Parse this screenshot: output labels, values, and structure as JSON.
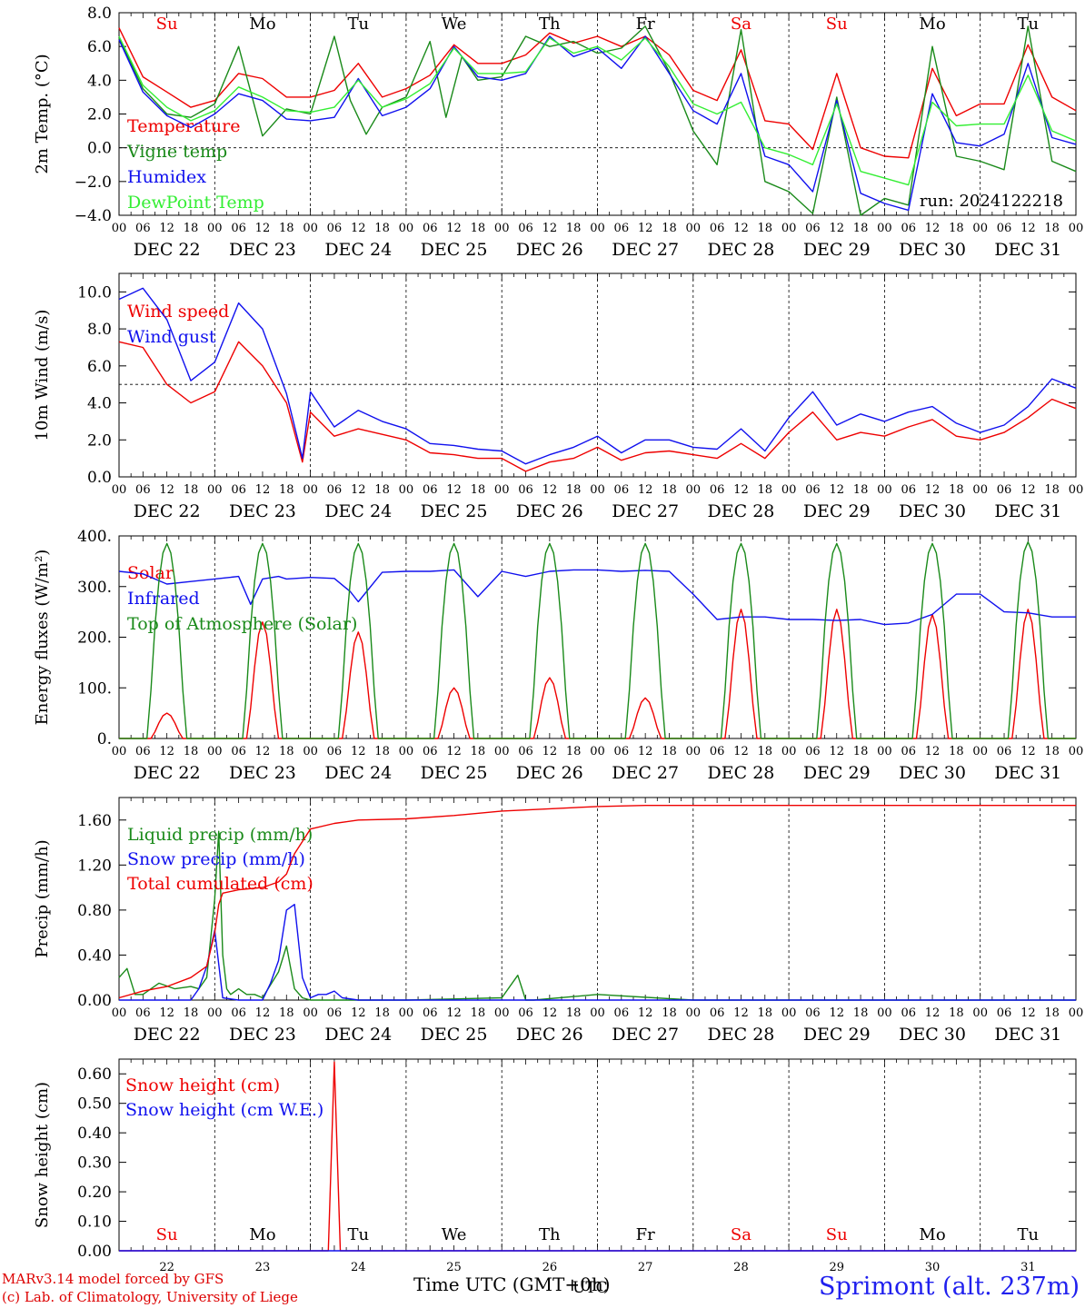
{
  "run_label": "run: 2024122218",
  "colors": {
    "red": "#ee0000",
    "green": "#1a8a1a",
    "blue": "#1010ee",
    "lightgreen": "#33ee33",
    "black": "#000000"
  },
  "time_axis": {
    "hour_ticks": [
      "00",
      "06",
      "12",
      "18"
    ],
    "dates": [
      "DEC 22",
      "DEC 23",
      "DEC 24",
      "DEC 25",
      "DEC 26",
      "DEC 27",
      "DEC 28",
      "DEC 29",
      "DEC 30",
      "DEC 31"
    ],
    "weekdays": [
      "Su",
      "Mo",
      "Tu",
      "We",
      "Th",
      "Fr",
      "Sa",
      "Su",
      "Mo",
      "Tu"
    ],
    "weekday_colors": [
      "red",
      "black",
      "black",
      "black",
      "black",
      "black",
      "red",
      "red",
      "black",
      "black"
    ],
    "day_numbers": [
      "22",
      "23",
      "24",
      "25",
      "26",
      "27",
      "28",
      "29",
      "30",
      "31"
    ],
    "xlabel": "Time UTC (GMT+0h)",
    "xlabel_overlay": "UTC"
  },
  "footer": {
    "line1": "MARv3.14 model forced by GFS",
    "line2": "(c) Lab. of Climatology, University of Liege",
    "station": "Sprimont (alt. 237m)"
  },
  "chart_data": [
    {
      "type": "line",
      "ylabel": "2m Temp. (°C)",
      "ylim": [
        -4,
        8
      ],
      "yticks": [
        "8.0",
        "6.0",
        "4.0",
        "2.0",
        "0.0",
        "−2.0",
        "−4.0"
      ],
      "reference_line": 0,
      "x_unit": "hours since 2024-12-22 00 UTC",
      "series": [
        {
          "name": "Temperature",
          "color": "red",
          "x": [
            0,
            6,
            12,
            18,
            24,
            30,
            36,
            42,
            48,
            54,
            60,
            66,
            72,
            78,
            84,
            90,
            96,
            102,
            108,
            114,
            120,
            126,
            132,
            138,
            144,
            150,
            156,
            162,
            168,
            174,
            180,
            186,
            192,
            198,
            204,
            210,
            216,
            222,
            228,
            234,
            240
          ],
          "y": [
            7.1,
            4.2,
            3.3,
            2.4,
            2.8,
            4.4,
            4.1,
            3.0,
            3.0,
            3.4,
            5.0,
            3.0,
            3.5,
            4.3,
            6.1,
            5.0,
            5.0,
            5.5,
            6.8,
            6.2,
            6.6,
            6.0,
            6.6,
            5.5,
            3.4,
            2.8,
            5.8,
            1.6,
            1.4,
            -0.1,
            4.4,
            0.0,
            -0.5,
            -0.6,
            4.7,
            1.9,
            2.6,
            2.6,
            6.1,
            3.0,
            2.2
          ]
        },
        {
          "name": "Vigne temp",
          "color": "green",
          "x": [
            0,
            6,
            12,
            18,
            24,
            30,
            36,
            42,
            48,
            54,
            58,
            62,
            66,
            72,
            78,
            82,
            86,
            90,
            96,
            102,
            108,
            114,
            120,
            126,
            132,
            138,
            144,
            150,
            156,
            162,
            168,
            174,
            180,
            186,
            192,
            198,
            204,
            210,
            216,
            222,
            228,
            234,
            240
          ],
          "y": [
            6.5,
            3.5,
            2.0,
            1.8,
            2.6,
            6.0,
            0.7,
            2.3,
            2.0,
            6.6,
            2.8,
            0.8,
            2.4,
            3.0,
            6.3,
            1.8,
            5.4,
            4.0,
            4.2,
            6.6,
            6.0,
            6.3,
            5.6,
            5.9,
            7.2,
            4.5,
            1.0,
            -1.0,
            7.0,
            -2.0,
            -2.6,
            -3.9,
            3.0,
            -4.0,
            -3.0,
            -3.4,
            6.0,
            -0.5,
            -0.8,
            -1.3,
            7.2,
            -0.8,
            -1.4
          ]
        },
        {
          "name": "Humidex",
          "color": "blue",
          "x": [
            0,
            6,
            12,
            18,
            24,
            30,
            36,
            42,
            48,
            54,
            60,
            66,
            72,
            78,
            84,
            90,
            96,
            102,
            108,
            114,
            120,
            126,
            132,
            138,
            144,
            150,
            156,
            162,
            168,
            174,
            180,
            186,
            192,
            198,
            204,
            210,
            216,
            222,
            228,
            234,
            240
          ],
          "y": [
            6.4,
            3.3,
            1.9,
            1.2,
            2.0,
            3.2,
            2.8,
            1.7,
            1.6,
            1.8,
            4.1,
            1.9,
            2.4,
            3.5,
            6.0,
            4.2,
            4.0,
            4.4,
            6.6,
            5.4,
            5.9,
            4.7,
            6.6,
            4.4,
            2.2,
            1.4,
            4.4,
            -0.5,
            -1.0,
            -2.6,
            2.8,
            -2.7,
            -3.3,
            -3.7,
            3.2,
            0.3,
            0.1,
            0.8,
            5.0,
            0.6,
            0.2
          ]
        },
        {
          "name": "DewPoint Temp",
          "color": "lightgreen",
          "x": [
            0,
            6,
            12,
            18,
            24,
            30,
            36,
            42,
            48,
            54,
            60,
            66,
            72,
            78,
            84,
            90,
            96,
            102,
            108,
            114,
            120,
            126,
            132,
            138,
            144,
            150,
            156,
            162,
            168,
            174,
            180,
            186,
            192,
            198,
            204,
            210,
            216,
            222,
            228,
            234,
            240
          ],
          "y": [
            6.6,
            3.7,
            2.4,
            1.6,
            2.2,
            3.6,
            3.0,
            2.2,
            2.1,
            2.4,
            4.0,
            2.4,
            2.9,
            3.8,
            5.9,
            4.4,
            4.4,
            4.5,
            6.5,
            5.6,
            6.0,
            5.2,
            6.5,
            4.8,
            2.6,
            2.0,
            2.7,
            0.0,
            -0.4,
            -1.0,
            2.6,
            -1.4,
            -1.8,
            -2.2,
            2.7,
            1.3,
            1.4,
            1.4,
            4.3,
            1.0,
            0.4
          ]
        }
      ]
    },
    {
      "type": "line",
      "ylabel": "10m Wind (m/s)",
      "ylim": [
        0,
        11
      ],
      "yticks": [
        "10.0",
        "8.0",
        "6.0",
        "4.0",
        "2.0",
        "0.0"
      ],
      "reference_line": 5,
      "series": [
        {
          "name": "Wind speed",
          "color": "red",
          "x": [
            0,
            6,
            12,
            18,
            24,
            30,
            36,
            42,
            46,
            48,
            54,
            60,
            66,
            72,
            78,
            84,
            90,
            96,
            102,
            108,
            114,
            120,
            126,
            132,
            138,
            144,
            150,
            156,
            162,
            168,
            174,
            180,
            186,
            192,
            198,
            204,
            210,
            216,
            222,
            228,
            234,
            240
          ],
          "y": [
            7.3,
            7.0,
            5.0,
            4.0,
            4.6,
            7.3,
            6.0,
            4.0,
            0.8,
            3.5,
            2.2,
            2.6,
            2.3,
            2.0,
            1.3,
            1.2,
            1.0,
            1.0,
            0.3,
            0.8,
            1.0,
            1.6,
            0.9,
            1.3,
            1.4,
            1.2,
            1.0,
            1.8,
            1.0,
            2.4,
            3.5,
            2.0,
            2.4,
            2.2,
            2.7,
            3.1,
            2.2,
            2.0,
            2.4,
            3.2,
            4.2,
            3.7
          ]
        },
        {
          "name": "Wind gust",
          "color": "blue",
          "x": [
            0,
            6,
            12,
            18,
            24,
            30,
            36,
            42,
            46,
            48,
            54,
            60,
            66,
            72,
            78,
            84,
            90,
            96,
            102,
            108,
            114,
            120,
            126,
            132,
            138,
            144,
            150,
            156,
            162,
            168,
            174,
            180,
            186,
            192,
            198,
            204,
            210,
            216,
            222,
            228,
            234,
            240
          ],
          "y": [
            9.6,
            10.2,
            8.5,
            5.2,
            6.2,
            9.4,
            8.0,
            4.5,
            1.0,
            4.6,
            2.7,
            3.6,
            3.0,
            2.6,
            1.8,
            1.7,
            1.5,
            1.4,
            0.7,
            1.2,
            1.6,
            2.2,
            1.3,
            2.0,
            2.0,
            1.6,
            1.5,
            2.6,
            1.4,
            3.2,
            4.6,
            2.8,
            3.4,
            3.0,
            3.5,
            3.8,
            2.9,
            2.4,
            2.8,
            3.8,
            5.3,
            4.8
          ]
        }
      ]
    },
    {
      "type": "line",
      "ylabel": "Energy fluxes (W/m²)",
      "ylim": [
        0,
        400
      ],
      "yticks": [
        "400.",
        "300.",
        "200.",
        "100.",
        "0."
      ],
      "series": [
        {
          "name": "Solar",
          "color": "red",
          "day_peaks": [
            50,
            230,
            210,
            100,
            120,
            80,
            255,
            255,
            245,
            255
          ]
        },
        {
          "name": "Infrared",
          "color": "blue",
          "x": [
            0,
            6,
            12,
            18,
            24,
            30,
            33,
            36,
            40,
            42,
            48,
            54,
            58,
            60,
            66,
            72,
            78,
            84,
            90,
            96,
            102,
            108,
            114,
            120,
            126,
            132,
            138,
            144,
            150,
            156,
            162,
            168,
            174,
            180,
            186,
            192,
            198,
            204,
            210,
            216,
            222,
            228,
            234,
            240
          ],
          "y": [
            330,
            325,
            305,
            310,
            315,
            320,
            265,
            315,
            320,
            315,
            318,
            316,
            290,
            270,
            328,
            330,
            330,
            333,
            280,
            330,
            320,
            330,
            333,
            333,
            330,
            332,
            330,
            285,
            235,
            240,
            240,
            235,
            235,
            233,
            235,
            225,
            228,
            245,
            285,
            285,
            250,
            248,
            240,
            240
          ]
        },
        {
          "name": "Top of Atmosphere (Solar)",
          "color": "green",
          "day_peaks": [
            385,
            385,
            385,
            385,
            385,
            385,
            385,
            385,
            385,
            388
          ]
        }
      ]
    },
    {
      "type": "line",
      "ylabel": "Precip (mm/h)",
      "ylim": [
        0,
        1.8
      ],
      "yticks": [
        "1.60",
        "1.20",
        "0.80",
        "0.40",
        "0.00"
      ],
      "series": [
        {
          "name": "Liquid precip (mm/h)",
          "color": "green",
          "x": [
            0,
            2,
            4,
            6,
            10,
            14,
            18,
            20,
            22,
            24,
            25,
            26,
            27,
            28,
            30,
            32,
            34,
            36,
            40,
            42,
            44,
            46,
            48,
            50,
            54,
            72,
            96,
            100,
            102,
            104,
            120,
            144,
            168,
            240
          ],
          "y": [
            0.2,
            0.28,
            0.05,
            0.05,
            0.15,
            0.1,
            0.12,
            0.1,
            0.2,
            0.9,
            1.5,
            0.4,
            0.1,
            0.05,
            0.1,
            0.05,
            0.05,
            0.02,
            0.25,
            0.48,
            0.1,
            0.02,
            0.0,
            0.0,
            0.0,
            0.0,
            0.02,
            0.22,
            0.0,
            0.0,
            0.05,
            0.0,
            0.0,
            0.0
          ]
        },
        {
          "name": "Snow precip (mm/h)",
          "color": "blue",
          "x": [
            0,
            18,
            20,
            22,
            24,
            26,
            30,
            36,
            38,
            40,
            42,
            44,
            46,
            48,
            50,
            52,
            54,
            56,
            60,
            72,
            240
          ],
          "y": [
            0.0,
            0.0,
            0.1,
            0.3,
            0.62,
            0.02,
            0.0,
            0.0,
            0.15,
            0.35,
            0.8,
            0.85,
            0.2,
            0.02,
            0.05,
            0.05,
            0.08,
            0.02,
            0.0,
            0.0,
            0.0
          ]
        },
        {
          "name": "Total cumulated (cm)",
          "color": "red",
          "x": [
            0,
            6,
            12,
            18,
            22,
            24,
            25,
            26,
            30,
            36,
            40,
            42,
            44,
            48,
            54,
            60,
            72,
            84,
            96,
            108,
            120,
            132,
            144,
            240
          ],
          "y": [
            0.02,
            0.08,
            0.12,
            0.2,
            0.3,
            0.6,
            0.85,
            0.95,
            0.98,
            1.0,
            1.05,
            1.12,
            1.3,
            1.52,
            1.57,
            1.6,
            1.61,
            1.64,
            1.68,
            1.7,
            1.72,
            1.73,
            1.73,
            1.73
          ]
        }
      ]
    },
    {
      "type": "line",
      "ylabel": "Snow height (cm)",
      "ylim": [
        0,
        0.65
      ],
      "yticks": [
        "0.60",
        "0.50",
        "0.40",
        "0.30",
        "0.20",
        "0.10",
        "0.00"
      ],
      "series": [
        {
          "name": "Snow height (cm)",
          "color": "red",
          "x": [
            0,
            52.5,
            54,
            55.5,
            240
          ],
          "y": [
            0,
            0,
            0.64,
            0,
            0
          ]
        },
        {
          "name": "Snow height (cm W.E.)",
          "color": "blue",
          "x": [
            0,
            240
          ],
          "y": [
            0,
            0
          ]
        }
      ]
    }
  ]
}
